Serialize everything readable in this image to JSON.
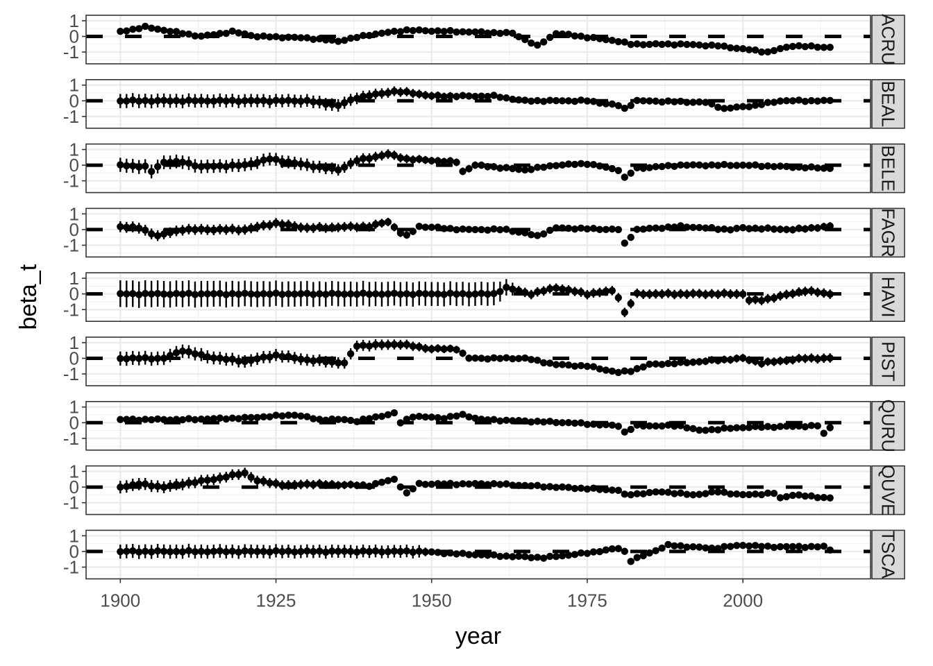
{
  "chart_data": {
    "type": "scatter",
    "facet": "rows",
    "xlabel": "year",
    "ylabel": "beta_t",
    "x_ticks": [
      1900,
      1925,
      1950,
      1975,
      2000
    ],
    "y_ticks": [
      -1,
      0,
      1
    ],
    "y_tick_labels": [
      "-1",
      "0",
      "1"
    ],
    "xlim": [
      1894.5,
      2020.5
    ],
    "ylim": [
      -1.75,
      1.35
    ],
    "x_start": 1900,
    "x_end": 2014,
    "reference_line": {
      "value": 0,
      "style": "dashed"
    },
    "grid": true,
    "panels": [
      {
        "name": "ACRU",
        "anchors": [
          [
            1900,
            0.3
          ],
          [
            1904,
            0.6
          ],
          [
            1910,
            0.2
          ],
          [
            1913,
            0.0
          ],
          [
            1918,
            0.3
          ],
          [
            1922,
            0.0
          ],
          [
            1930,
            -0.1
          ],
          [
            1935,
            -0.3
          ],
          [
            1940,
            0.1
          ],
          [
            1946,
            0.4
          ],
          [
            1955,
            0.3
          ],
          [
            1963,
            0.2
          ],
          [
            1967,
            -0.6
          ],
          [
            1970,
            0.2
          ],
          [
            1980,
            -0.3
          ],
          [
            1982,
            -0.5
          ],
          [
            1990,
            -0.5
          ],
          [
            1996,
            -0.6
          ],
          [
            2000,
            -0.8
          ],
          [
            2004,
            -1.0
          ],
          [
            2008,
            -0.6
          ],
          [
            2014,
            -0.7
          ]
        ],
        "err": [
          [
            1900,
            0.1
          ],
          [
            2014,
            0.1
          ]
        ]
      },
      {
        "name": "BEAL",
        "anchors": [
          [
            1900,
            0.0
          ],
          [
            1910,
            0.0
          ],
          [
            1920,
            0.0
          ],
          [
            1930,
            0.0
          ],
          [
            1935,
            -0.3
          ],
          [
            1938,
            0.2
          ],
          [
            1944,
            0.6
          ],
          [
            1947,
            0.5
          ],
          [
            1950,
            0.3
          ],
          [
            1960,
            0.3
          ],
          [
            1965,
            0.0
          ],
          [
            1975,
            0.0
          ],
          [
            1980,
            -0.3
          ],
          [
            1981,
            -0.5
          ],
          [
            1983,
            0.0
          ],
          [
            1994,
            -0.1
          ],
          [
            1997,
            -0.5
          ],
          [
            2002,
            -0.3
          ],
          [
            2006,
            0.0
          ],
          [
            2014,
            0.0
          ]
        ],
        "err": [
          [
            1900,
            0.45
          ],
          [
            1935,
            0.4
          ],
          [
            1945,
            0.3
          ],
          [
            1960,
            0.2
          ],
          [
            1980,
            0.15
          ],
          [
            2014,
            0.15
          ]
        ]
      },
      {
        "name": "BELE",
        "anchors": [
          [
            1900,
            0.0
          ],
          [
            1904,
            -0.1
          ],
          [
            1905,
            -0.4
          ],
          [
            1907,
            0.2
          ],
          [
            1910,
            0.2
          ],
          [
            1913,
            -0.1
          ],
          [
            1920,
            0.0
          ],
          [
            1924,
            0.4
          ],
          [
            1930,
            0.0
          ],
          [
            1935,
            -0.3
          ],
          [
            1938,
            0.3
          ],
          [
            1943,
            0.7
          ],
          [
            1946,
            0.4
          ],
          [
            1950,
            0.3
          ],
          [
            1954,
            0.2
          ],
          [
            1955,
            -0.4
          ],
          [
            1957,
            0.0
          ],
          [
            1965,
            -0.3
          ],
          [
            1970,
            0.0
          ],
          [
            1975,
            0.1
          ],
          [
            1980,
            -0.3
          ],
          [
            1981,
            -0.8
          ],
          [
            1983,
            -0.2
          ],
          [
            1990,
            0.0
          ],
          [
            2000,
            0.0
          ],
          [
            2014,
            -0.2
          ]
        ],
        "err": [
          [
            1900,
            0.45
          ],
          [
            1930,
            0.4
          ],
          [
            1950,
            0.25
          ],
          [
            1980,
            0.2
          ],
          [
            2014,
            0.2
          ]
        ]
      },
      {
        "name": "FAGR",
        "anchors": [
          [
            1900,
            0.2
          ],
          [
            1903,
            0.1
          ],
          [
            1906,
            -0.4
          ],
          [
            1910,
            0.0
          ],
          [
            1920,
            0.0
          ],
          [
            1925,
            0.4
          ],
          [
            1930,
            0.1
          ],
          [
            1940,
            0.2
          ],
          [
            1943,
            0.5
          ],
          [
            1945,
            -0.2
          ],
          [
            1946,
            -0.4
          ],
          [
            1948,
            0.2
          ],
          [
            1955,
            0.0
          ],
          [
            1962,
            0.0
          ],
          [
            1967,
            -0.4
          ],
          [
            1970,
            0.1
          ],
          [
            1980,
            0.0
          ],
          [
            1981,
            -0.9
          ],
          [
            1983,
            0.0
          ],
          [
            1990,
            0.2
          ],
          [
            1994,
            0.1
          ],
          [
            1998,
            0.0
          ],
          [
            2000,
            0.1
          ],
          [
            2008,
            0.0
          ],
          [
            2014,
            0.2
          ]
        ],
        "err": [
          [
            1900,
            0.35
          ],
          [
            1940,
            0.3
          ],
          [
            1950,
            0.2
          ],
          [
            1980,
            0.2
          ],
          [
            2014,
            0.25
          ]
        ]
      },
      {
        "name": "HAVI",
        "anchors": [
          [
            1900,
            0.0
          ],
          [
            1960,
            0.0
          ],
          [
            1962,
            0.4
          ],
          [
            1966,
            0.0
          ],
          [
            1970,
            0.4
          ],
          [
            1975,
            0.0
          ],
          [
            1979,
            0.2
          ],
          [
            1980,
            -0.2
          ],
          [
            1981,
            -1.2
          ],
          [
            1983,
            0.0
          ],
          [
            1990,
            0.0
          ],
          [
            2000,
            0.0
          ],
          [
            2001,
            -0.4
          ],
          [
            2003,
            -0.4
          ],
          [
            2010,
            0.2
          ],
          [
            2014,
            0.0
          ]
        ],
        "err": [
          [
            1900,
            0.85
          ],
          [
            1960,
            0.75
          ],
          [
            1964,
            0.3
          ],
          [
            1980,
            0.3
          ],
          [
            2014,
            0.3
          ]
        ]
      },
      {
        "name": "PIST",
        "anchors": [
          [
            1900,
            0.0
          ],
          [
            1907,
            0.0
          ],
          [
            1910,
            0.5
          ],
          [
            1914,
            0.1
          ],
          [
            1920,
            -0.2
          ],
          [
            1925,
            0.2
          ],
          [
            1930,
            -0.1
          ],
          [
            1936,
            -0.3
          ],
          [
            1938,
            0.8
          ],
          [
            1945,
            0.9
          ],
          [
            1950,
            0.6
          ],
          [
            1954,
            0.6
          ],
          [
            1956,
            0.0
          ],
          [
            1965,
            0.0
          ],
          [
            1970,
            -0.4
          ],
          [
            1975,
            -0.5
          ],
          [
            1980,
            -0.9
          ],
          [
            1982,
            -0.8
          ],
          [
            1985,
            -0.4
          ],
          [
            1990,
            -0.3
          ],
          [
            2000,
            0.0
          ],
          [
            2003,
            -0.3
          ],
          [
            2010,
            0.0
          ],
          [
            2014,
            0.0
          ]
        ],
        "err": [
          [
            1900,
            0.45
          ],
          [
            1940,
            0.35
          ],
          [
            1960,
            0.2
          ],
          [
            1980,
            0.2
          ],
          [
            2014,
            0.3
          ]
        ]
      },
      {
        "name": "QURU",
        "anchors": [
          [
            1900,
            0.2
          ],
          [
            1910,
            0.2
          ],
          [
            1920,
            0.3
          ],
          [
            1928,
            0.5
          ],
          [
            1932,
            0.2
          ],
          [
            1936,
            0.2
          ],
          [
            1938,
            0.1
          ],
          [
            1944,
            0.6
          ],
          [
            1945,
            0.0
          ],
          [
            1947,
            0.4
          ],
          [
            1952,
            0.3
          ],
          [
            1955,
            0.5
          ],
          [
            1958,
            0.2
          ],
          [
            1965,
            0.1
          ],
          [
            1972,
            0.0
          ],
          [
            1980,
            -0.2
          ],
          [
            1981,
            -0.6
          ],
          [
            1983,
            -0.2
          ],
          [
            1990,
            -0.2
          ],
          [
            1993,
            -0.5
          ],
          [
            2000,
            -0.3
          ],
          [
            2012,
            -0.2
          ],
          [
            2013,
            -0.7
          ],
          [
            2014,
            -0.3
          ]
        ],
        "err": [
          [
            1900,
            0.1
          ],
          [
            2014,
            0.1
          ]
        ]
      },
      {
        "name": "QUVE",
        "anchors": [
          [
            1900,
            0.0
          ],
          [
            1903,
            0.2
          ],
          [
            1907,
            0.0
          ],
          [
            1910,
            0.2
          ],
          [
            1915,
            0.5
          ],
          [
            1920,
            0.9
          ],
          [
            1922,
            0.4
          ],
          [
            1927,
            0.1
          ],
          [
            1930,
            0.2
          ],
          [
            1940,
            0.1
          ],
          [
            1944,
            0.5
          ],
          [
            1946,
            -0.4
          ],
          [
            1948,
            0.2
          ],
          [
            1960,
            0.2
          ],
          [
            1970,
            0.0
          ],
          [
            1980,
            -0.2
          ],
          [
            1981,
            -0.5
          ],
          [
            1987,
            -0.3
          ],
          [
            1992,
            -0.5
          ],
          [
            1996,
            -0.3
          ],
          [
            2000,
            -0.5
          ],
          [
            2005,
            -0.4
          ],
          [
            2006,
            -0.7
          ],
          [
            2008,
            -0.5
          ],
          [
            2014,
            -0.7
          ]
        ],
        "err": [
          [
            1900,
            0.4
          ],
          [
            1930,
            0.3
          ],
          [
            1945,
            0.2
          ],
          [
            1950,
            0.15
          ],
          [
            2014,
            0.15
          ]
        ]
      },
      {
        "name": "TSCA",
        "anchors": [
          [
            1900,
            0.0
          ],
          [
            1948,
            0.0
          ],
          [
            1952,
            -0.1
          ],
          [
            1962,
            -0.3
          ],
          [
            1968,
            -0.4
          ],
          [
            1975,
            -0.1
          ],
          [
            1980,
            0.2
          ],
          [
            1981,
            0.0
          ],
          [
            1982,
            -0.6
          ],
          [
            1985,
            -0.1
          ],
          [
            1988,
            0.4
          ],
          [
            1995,
            0.2
          ],
          [
            2000,
            0.4
          ],
          [
            2004,
            0.3
          ],
          [
            2010,
            0.3
          ],
          [
            2013,
            0.3
          ],
          [
            2014,
            0.1
          ]
        ],
        "err": [
          [
            1900,
            0.45
          ],
          [
            1948,
            0.4
          ],
          [
            1950,
            0.15
          ],
          [
            2014,
            0.15
          ]
        ]
      }
    ]
  }
}
